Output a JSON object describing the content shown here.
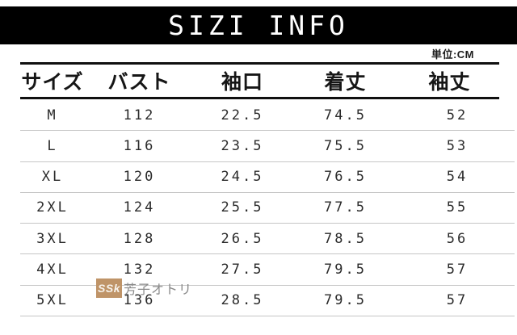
{
  "title": "SIZI INFO",
  "unit_label": "単位:CM",
  "watermark": {
    "badge": "SSk",
    "text": "芳子オトリ"
  },
  "colors": {
    "title_bar_bg": "#000000",
    "title_text": "#ffffff",
    "thick_line": "#101010",
    "row_separator": "#c6c6c6",
    "watermark_badge_bg": "#bf9468",
    "watermark_text": "#8a8a8a"
  },
  "chart_data": {
    "type": "table",
    "title": "SIZI INFO",
    "unit": "CM",
    "columns": [
      "サイズ",
      "バスト",
      "袖口",
      "着丈",
      "袖丈"
    ],
    "rows": [
      [
        "M",
        "112",
        "22.5",
        "74.5",
        "52"
      ],
      [
        "L",
        "116",
        "23.5",
        "75.5",
        "53"
      ],
      [
        "XL",
        "120",
        "24.5",
        "76.5",
        "54"
      ],
      [
        "2XL",
        "124",
        "25.5",
        "77.5",
        "55"
      ],
      [
        "3XL",
        "128",
        "26.5",
        "78.5",
        "56"
      ],
      [
        "4XL",
        "132",
        "27.5",
        "79.5",
        "57"
      ],
      [
        "5XL",
        "136",
        "28.5",
        "79.5",
        "57"
      ]
    ]
  }
}
